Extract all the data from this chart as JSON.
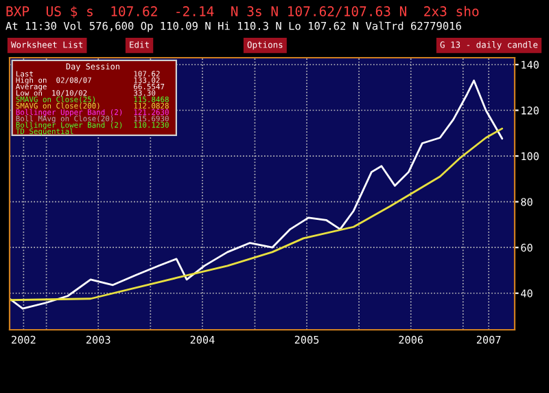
{
  "chart_data": {
    "type": "line",
    "title": "G 13 - daily candle",
    "x": [
      "2002-08-25",
      "2002-10-10",
      "2002-12-30",
      "2003-03-17",
      "2003-06-05",
      "2003-08-22",
      "2003-11-10",
      "2004-01-30",
      "2004-04-01",
      "2004-05-07",
      "2004-07-08",
      "2004-09-27",
      "2004-12-15",
      "2005-03-03",
      "2005-05-05",
      "2005-07-08",
      "2005-09-08",
      "2005-10-27",
      "2005-12-13",
      "2006-02-14",
      "2006-03-21",
      "2006-05-07",
      "2006-06-24",
      "2006-08-11",
      "2006-10-12",
      "2006-11-28",
      "2007-01-15",
      "2007-02-08",
      "2007-03-22",
      "2007-05-18"
    ],
    "series": [
      {
        "color": "#ffffff",
        "values": [
          37.6,
          33.3,
          35.8,
          38.8,
          46,
          43.6,
          47.9,
          52,
          55,
          46,
          52,
          58,
          62,
          60,
          68,
          73,
          72,
          68,
          76,
          93,
          95.6,
          87,
          93,
          105.6,
          108,
          116,
          127,
          133,
          120,
          107.6
        ]
      },
      {
        "color": "#e8e040",
        "x": [
          "2002-08-25",
          "2003-06-05",
          "2004-04-01",
          "2004-09-27",
          "2005-03-03",
          "2005-06-20",
          "2005-12-13",
          "2006-04-20",
          "2006-10-12",
          "2006-12-20",
          "2007-03-22",
          "2007-05-18"
        ],
        "values": [
          37,
          37.6,
          46.7,
          52,
          58,
          64,
          69,
          78,
          91,
          99,
          108,
          112
        ]
      }
    ],
    "xlim": [
      "2002-08-25",
      "2007-07-01"
    ],
    "xticks": [
      {
        "value": "2002-10-13",
        "label": "2002"
      },
      {
        "value": "2003-01-01",
        "label": null
      },
      {
        "value": "2003-07-02",
        "label": "2003"
      },
      {
        "value": "2004-01-01",
        "label": null
      },
      {
        "value": "2004-07-01",
        "label": "2004"
      },
      {
        "value": "2005-01-01",
        "label": null
      },
      {
        "value": "2005-07-02",
        "label": "2005"
      },
      {
        "value": "2006-01-01",
        "label": null
      },
      {
        "value": "2006-07-02",
        "label": "2006"
      },
      {
        "value": "2007-01-01",
        "label": null
      },
      {
        "value": "2007-04-01",
        "label": "2007"
      }
    ],
    "ylim": [
      24,
      143
    ],
    "yticks": [
      40,
      60,
      80,
      100,
      120,
      140
    ],
    "grid": true,
    "annotations": [
      "BXP  US $ s  107.62  -2.14  N 3s N 107.62/107.63 N  2x3 sho",
      "At 11:30 Vol 576,600 Op 110.09 N Hi 110.3 N Lo 107.62 N ValTrd 62779016",
      "Worksheet List",
      "Edit",
      "Options",
      "Day Session",
      "Last",
      "107.62",
      "High on  02/08/07",
      "133.02",
      "Average",
      "66.5547",
      "Low on  10/10/02",
      "33.30",
      "SMAVG on Close(25)",
      "115.8468",
      "SMAVG on Close(200)",
      "112.0828",
      "Bollinger Upper Band (2)",
      "121.2630",
      "Boll MAvg on Close(20)",
      "115.6930",
      "Bollinger Lower Band (2)",
      "110.1230",
      "TD Sequential"
    ]
  }
}
